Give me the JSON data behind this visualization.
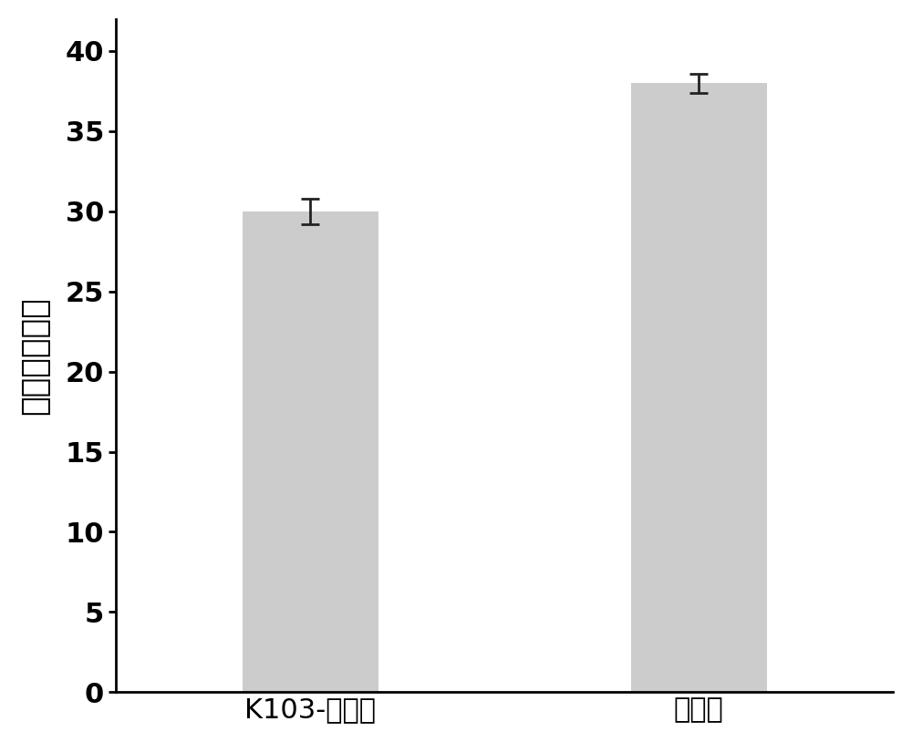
{
  "categories": [
    "K103-尼龙膜",
    "尼龙膜"
  ],
  "values": [
    30.0,
    38.0
  ],
  "errors": [
    0.8,
    0.6
  ],
  "bar_color": "#cccccc",
  "bar_edge_color": "#cccccc",
  "error_color": "#222222",
  "ylabel": "压强（千帕）",
  "ylim": [
    0,
    42
  ],
  "yticks": [
    0,
    5,
    10,
    15,
    20,
    25,
    30,
    35,
    40
  ],
  "bar_width": 0.35,
  "figsize": [
    10.0,
    8.14
  ],
  "dpi": 100,
  "axis_linewidth": 2.0,
  "tick_fontsize": 22,
  "ylabel_fontsize": 26,
  "xlabel_fontsize": 22,
  "background_color": "#ffffff",
  "x_positions": [
    0.3,
    0.85
  ]
}
